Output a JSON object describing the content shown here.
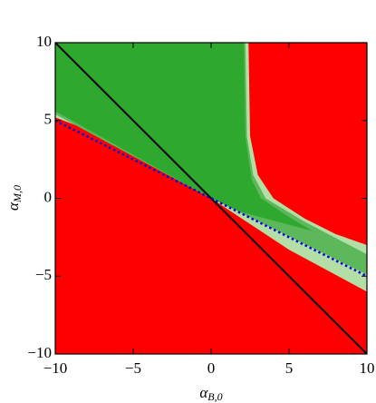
{
  "chart_data": {
    "type": "region",
    "background_color": "#ff0000",
    "xlabel": "α",
    "xlabel_sub": "B,0",
    "ylabel": "α",
    "ylabel_sub": "M,0",
    "xlim": [
      -10,
      10
    ],
    "ylim": [
      -10,
      10
    ],
    "xticks": [
      {
        "value": -10,
        "label": "−10"
      },
      {
        "value": -5,
        "label": "−5"
      },
      0,
      5,
      10
    ],
    "yticks": [
      {
        "value": -10,
        "label": "−10"
      },
      {
        "value": -5,
        "label": "−5"
      },
      0,
      5,
      10
    ],
    "regions": [
      {
        "color": "#b3dfa6",
        "x": [
          -10,
          2.4,
          2.5,
          3,
          4,
          6,
          8,
          10,
          10,
          5,
          0,
          -5,
          -10
        ],
        "y": [
          10,
          10,
          4,
          1.5,
          0,
          -1.3,
          -2.3,
          -3,
          -6,
          -3.3,
          0,
          3.3,
          5.2
        ]
      },
      {
        "color": "#5cb85a",
        "x": [
          -10,
          2.2,
          2.3,
          2.7,
          3.5,
          6,
          10,
          10,
          0,
          -10
        ],
        "y": [
          10,
          10,
          4,
          1.5,
          0,
          -1.5,
          -3.6,
          -4.9,
          0,
          5.4
        ]
      },
      {
        "color": "#2ea82e",
        "x": [
          -10,
          2.1,
          2.2,
          2.6,
          3.2,
          5,
          6.5,
          5,
          2,
          0,
          -10
        ],
        "y": [
          10,
          10,
          4,
          1.2,
          0,
          -1.2,
          -2.1,
          -1.7,
          -0.9,
          0,
          5.6
        ]
      }
    ],
    "lines": [
      {
        "color": "#000000",
        "style": "solid",
        "x": [
          -10,
          10
        ],
        "y": [
          10,
          -10
        ]
      },
      {
        "color": "#0000dd",
        "style": "dotted",
        "x": [
          -10,
          10
        ],
        "y": [
          5,
          -5
        ]
      }
    ]
  }
}
